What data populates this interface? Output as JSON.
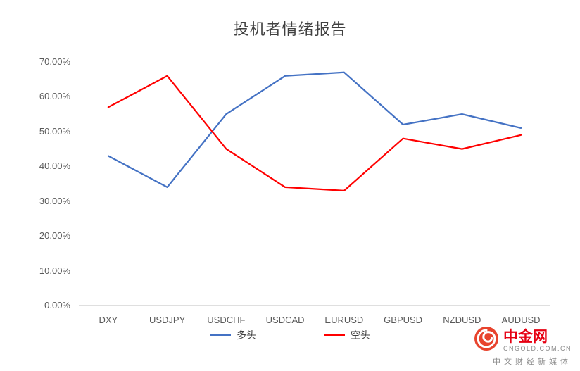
{
  "chart_data": {
    "type": "line",
    "title": "投机者情绪报告",
    "categories": [
      "DXY",
      "USDJPY",
      "USDCHF",
      "USDCAD",
      "EURUSD",
      "GBPUSD",
      "NZDUSD",
      "AUDUSD"
    ],
    "series": [
      {
        "name": "多头",
        "color": "#4472c4",
        "values": [
          43,
          34,
          55,
          66,
          67,
          52,
          55,
          51
        ]
      },
      {
        "name": "空头",
        "color": "#ff0000",
        "values": [
          57,
          66,
          45,
          34,
          33,
          48,
          45,
          49
        ]
      }
    ],
    "xlabel": "",
    "ylabel": "",
    "ylim": [
      0,
      70
    ],
    "y_tick_values": [
      0,
      10,
      20,
      30,
      40,
      50,
      60,
      70
    ],
    "y_tick_labels": [
      "0.00%",
      "10.00%",
      "20.00%",
      "30.00%",
      "40.00%",
      "50.00%",
      "60.00%",
      "70.00%"
    ],
    "grid": false,
    "legend_position": "bottom",
    "axis_line_color": "#bfbfbf"
  },
  "watermark": {
    "brand": "中金网",
    "domain": "CNGOLD.COM.CN",
    "tagline": "中文财经新媒体"
  }
}
